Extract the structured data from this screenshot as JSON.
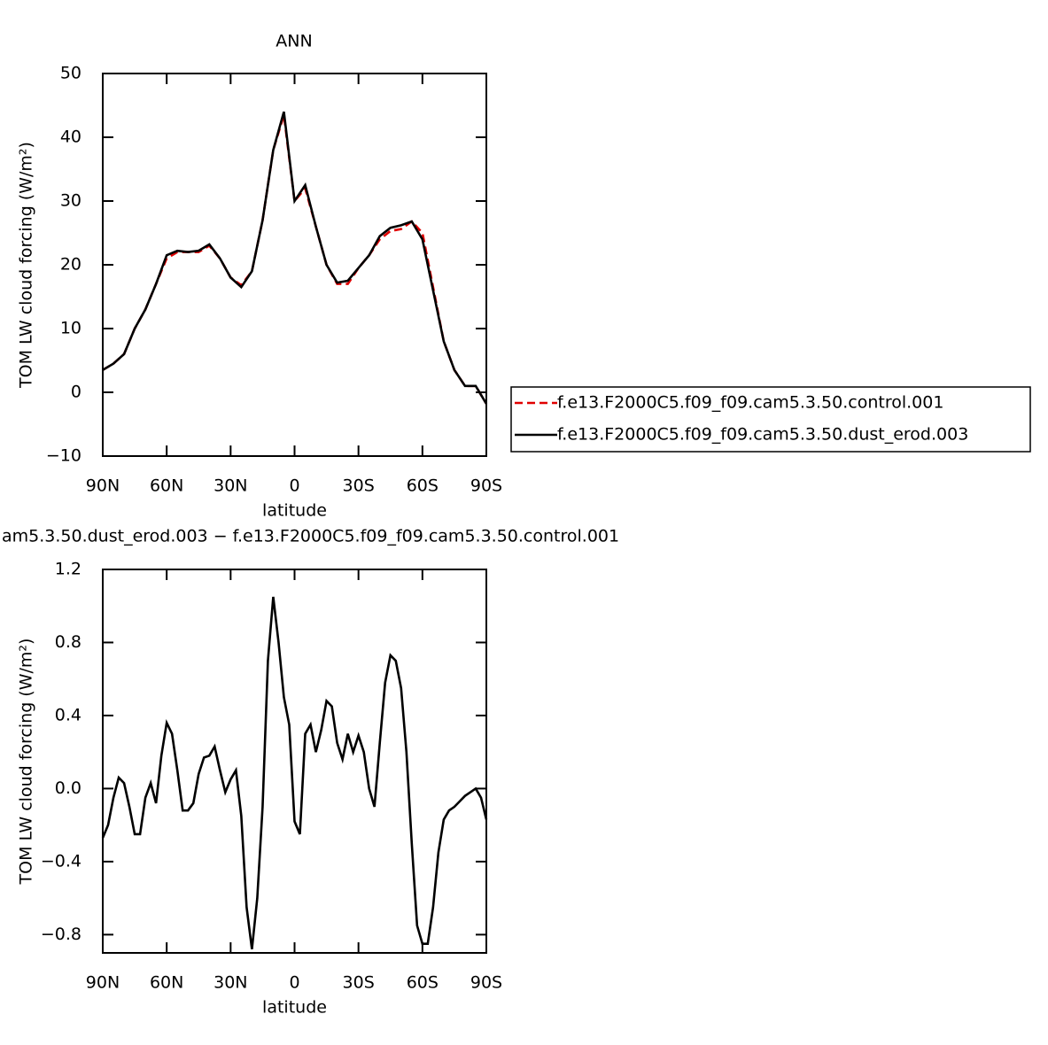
{
  "chart_data": [
    {
      "type": "line",
      "title": "ANN",
      "ylabel": "TOM LW cloud forcing (W/m²)",
      "xlabel": "latitude",
      "x": [
        90,
        85,
        80,
        75,
        70,
        65,
        60,
        55,
        50,
        45,
        40,
        35,
        30,
        25,
        20,
        15,
        10,
        5,
        0,
        -5,
        -10,
        -15,
        -20,
        -25,
        -30,
        -35,
        -40,
        -45,
        -50,
        -55,
        -60,
        -65,
        -70,
        -75,
        -80,
        -85,
        -90
      ],
      "series": [
        {
          "name": "f.e13.F2000C5.f09_f09.cam5.3.50.control.001",
          "color": "#e00000",
          "linestyle": "dashed",
          "values": [
            3.5,
            4.5,
            6,
            10,
            13,
            17,
            21,
            22,
            22,
            22,
            23,
            21,
            18,
            16.8,
            19,
            27,
            38,
            43.5,
            30,
            32,
            26,
            20,
            17,
            17,
            19.5,
            21.5,
            24,
            25.3,
            25.6,
            26.8,
            25,
            16.5,
            8,
            3.5,
            1,
            1,
            -1.8
          ]
        },
        {
          "name": "f.e13.F2000C5.f09_f09.cam5.3.50.dust_erod.003",
          "color": "#000000",
          "linestyle": "solid",
          "values": [
            3.5,
            4.5,
            6,
            10,
            13,
            17,
            21.5,
            22.2,
            22,
            22.2,
            23.2,
            21,
            18,
            16.5,
            19,
            27,
            38,
            44,
            30,
            32.5,
            26,
            20,
            17.2,
            17.5,
            19.5,
            21.5,
            24.5,
            25.8,
            26.2,
            26.8,
            24,
            16,
            8,
            3.5,
            1,
            1,
            -1.8
          ]
        }
      ],
      "xlim": [
        90,
        -90
      ],
      "xticks": [
        {
          "value": 90,
          "label": "90N"
        },
        {
          "value": 60,
          "label": "60N"
        },
        {
          "value": 30,
          "label": "30N"
        },
        0,
        {
          "value": -30,
          "label": "30S"
        },
        {
          "value": -60,
          "label": "60S"
        },
        {
          "value": -90,
          "label": "90S"
        }
      ],
      "ylim": [
        -10,
        50
      ],
      "yticks": [
        {
          "value": -10,
          "label": "−10"
        },
        0,
        10,
        20,
        30,
        40,
        50
      ],
      "legend": "right"
    },
    {
      "type": "line",
      "title": "am5.3.50.dust_erod.003 − f.e13.F2000C5.f09_f09.cam5.3.50.control.001",
      "ylabel": "TOM LW cloud forcing (W/m²)",
      "xlabel": "latitude",
      "x": [
        90,
        87.5,
        85,
        82.5,
        80,
        77.5,
        75,
        72.5,
        70,
        67.5,
        65,
        62.5,
        60,
        57.5,
        55,
        52.5,
        50,
        47.5,
        45,
        42.5,
        40,
        37.5,
        35,
        32.5,
        30,
        27.5,
        25,
        22.5,
        20,
        17.5,
        15,
        12.5,
        10,
        7.5,
        5,
        2.5,
        0,
        -2.5,
        -5,
        -7.5,
        -10,
        -12.5,
        -15,
        -17.5,
        -20,
        -22.5,
        -25,
        -27.5,
        -30,
        -32.5,
        -35,
        -37.5,
        -40,
        -42.5,
        -45,
        -47.5,
        -50,
        -52.5,
        -55,
        -57.5,
        -60,
        -62.5,
        -65,
        -67.5,
        -70,
        -72.5,
        -75,
        -77.5,
        -80,
        -82.5,
        -85,
        -87.5,
        -90
      ],
      "series": [
        {
          "color": "#000000",
          "linestyle": "solid",
          "values": [
            -0.27,
            -0.2,
            -0.05,
            0.06,
            0.03,
            -0.1,
            -0.25,
            -0.25,
            -0.05,
            0.03,
            -0.08,
            0.18,
            0.36,
            0.3,
            0.1,
            -0.12,
            -0.12,
            -0.08,
            0.08,
            0.17,
            0.18,
            0.23,
            0.1,
            -0.02,
            0.05,
            0.1,
            -0.15,
            -0.65,
            -0.88,
            -0.6,
            -0.1,
            0.7,
            1.05,
            0.8,
            0.5,
            0.35,
            -0.18,
            -0.25,
            0.3,
            0.35,
            0.2,
            0.32,
            0.48,
            0.45,
            0.25,
            0.16,
            0.3,
            0.2,
            0.29,
            0.2,
            0,
            -0.1,
            0.25,
            0.58,
            0.73,
            0.7,
            0.55,
            0.2,
            -0.3,
            -0.75,
            -0.85,
            -0.85,
            -0.65,
            -0.35,
            -0.17,
            -0.12,
            -0.1,
            -0.07,
            -0.04,
            -0.02,
            0,
            -0.05,
            -0.17
          ]
        }
      ],
      "xlim": [
        90,
        -90
      ],
      "xticks": [
        {
          "value": 90,
          "label": "90N"
        },
        {
          "value": 60,
          "label": "60N"
        },
        {
          "value": 30,
          "label": "30N"
        },
        0,
        {
          "value": -30,
          "label": "30S"
        },
        {
          "value": -60,
          "label": "60S"
        },
        {
          "value": -90,
          "label": "90S"
        }
      ],
      "ylim": [
        -0.9,
        1.2
      ],
      "yticks": [
        {
          "value": -0.8,
          "label": "−0.8"
        },
        {
          "value": -0.4,
          "label": "−0.4"
        },
        {
          "value": 0,
          "label": "0.0"
        },
        0.4,
        0.8,
        1.2
      ]
    }
  ]
}
